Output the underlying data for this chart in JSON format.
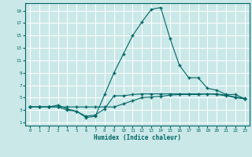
{
  "title": "",
  "xlabel": "Humidex (Indice chaleur)",
  "xlim": [
    -0.5,
    23.5
  ],
  "ylim": [
    0.5,
    20.2
  ],
  "yticks": [
    1,
    3,
    5,
    7,
    9,
    11,
    13,
    15,
    17,
    19
  ],
  "xticks": [
    0,
    1,
    2,
    3,
    4,
    5,
    6,
    7,
    8,
    9,
    10,
    11,
    12,
    13,
    14,
    15,
    16,
    17,
    18,
    19,
    20,
    21,
    22,
    23
  ],
  "bg_color": "#cbe8e8",
  "line_color": "#006666",
  "grid_color": "#ffffff",
  "series1_x": [
    0,
    1,
    2,
    3,
    4,
    5,
    6,
    7,
    8,
    9,
    10,
    11,
    12,
    13,
    14,
    15,
    16,
    17,
    18,
    19,
    20,
    21,
    22,
    23
  ],
  "series1_y": [
    3.5,
    3.5,
    3.5,
    3.5,
    3.5,
    3.5,
    3.5,
    3.5,
    3.5,
    3.5,
    4.0,
    4.5,
    5.0,
    5.1,
    5.2,
    5.4,
    5.5,
    5.5,
    5.5,
    5.6,
    5.5,
    5.3,
    5.0,
    4.8
  ],
  "series2_x": [
    0,
    1,
    2,
    3,
    4,
    5,
    6,
    7,
    8,
    9,
    10,
    11,
    12,
    13,
    14,
    15,
    16,
    17,
    18,
    19,
    20,
    21,
    22,
    23
  ],
  "series2_y": [
    3.5,
    3.5,
    3.5,
    3.8,
    3.2,
    2.8,
    2.0,
    2.2,
    3.2,
    5.3,
    5.3,
    5.5,
    5.6,
    5.6,
    5.6,
    5.6,
    5.6,
    5.6,
    5.6,
    5.6,
    5.6,
    5.4,
    5.1,
    4.9
  ],
  "series3_x": [
    0,
    1,
    2,
    3,
    4,
    5,
    6,
    7,
    8,
    9,
    10,
    11,
    12,
    13,
    14,
    15,
    16,
    17,
    18,
    19,
    20,
    21,
    22,
    23
  ],
  "series3_y": [
    3.5,
    3.5,
    3.5,
    3.5,
    3.0,
    2.8,
    1.8,
    2.0,
    5.5,
    9.0,
    12.0,
    15.0,
    17.2,
    19.2,
    19.5,
    14.5,
    10.2,
    8.2,
    8.2,
    6.5,
    6.2,
    5.5,
    5.5,
    4.8
  ],
  "marker": "+",
  "markersize": 2.5,
  "linewidth": 0.8,
  "tick_fontsize": 4.2,
  "xlabel_fontsize": 5.5
}
